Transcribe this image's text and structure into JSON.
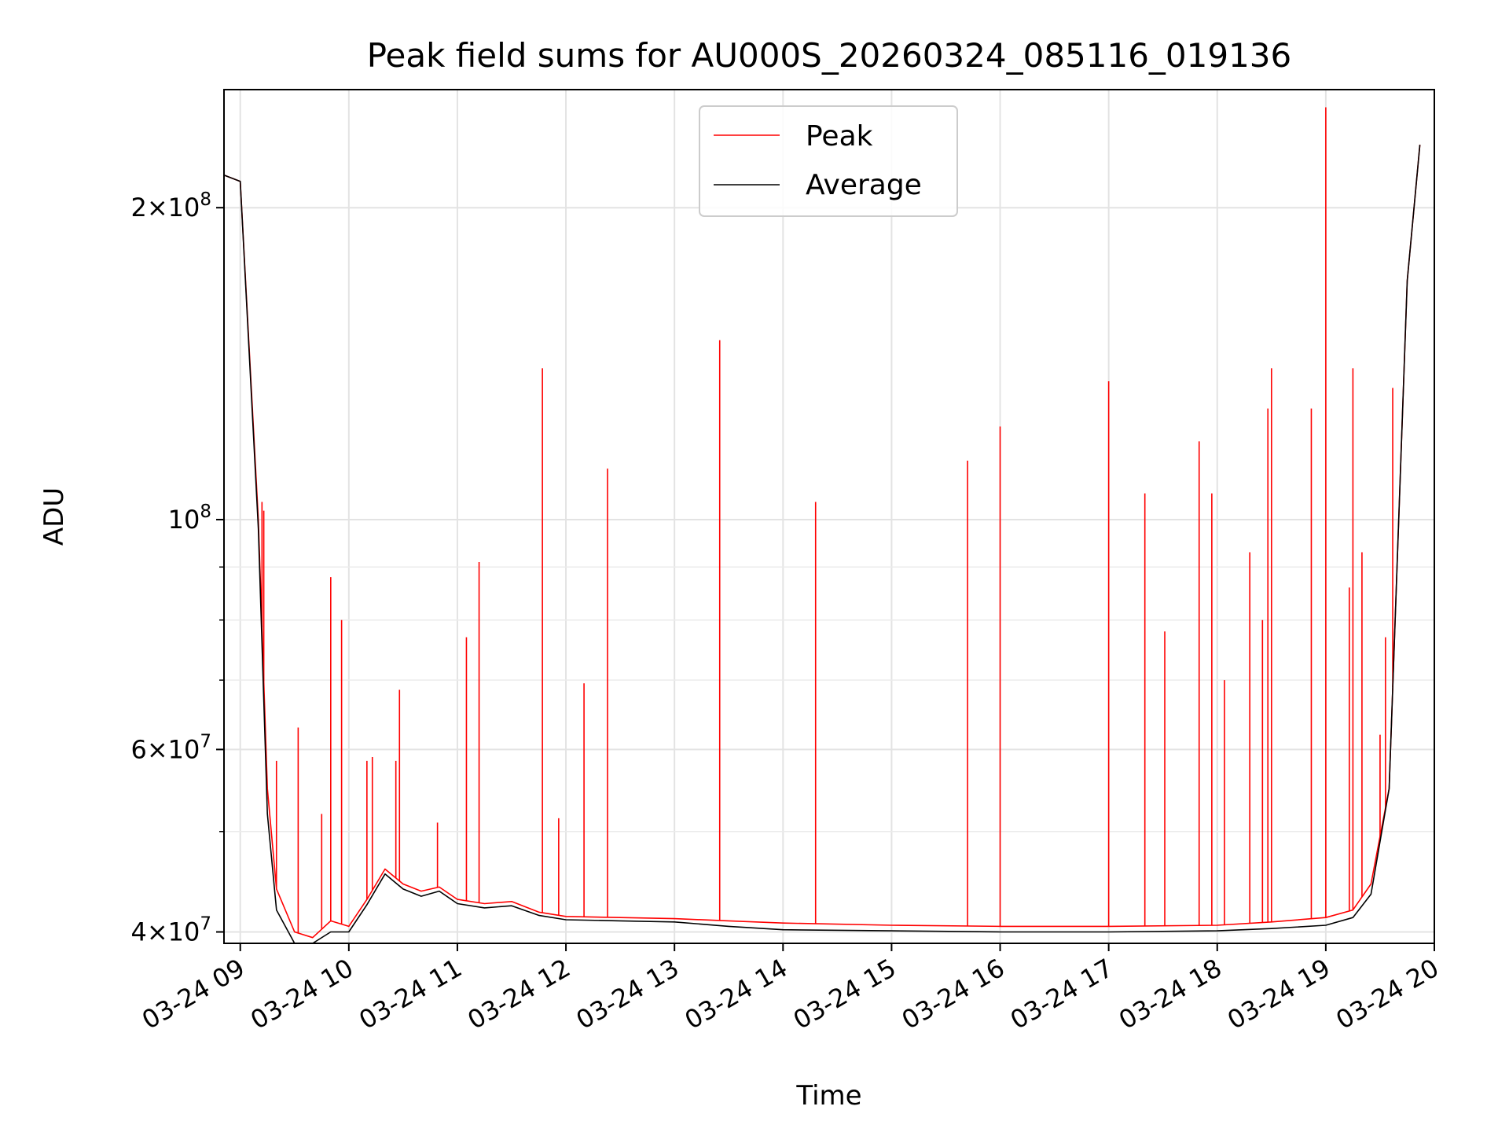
{
  "chart_data": {
    "type": "line",
    "title": "Peak field sums for AU000S_20260324_085116_019136",
    "xlabel": "Time",
    "ylabel": "ADU",
    "yscale": "log",
    "xlim": [
      "03-24 08:51",
      "03-24 20:00"
    ],
    "ylim": [
      39000000,
      260000000
    ],
    "grid": true,
    "legend_position": "top-center",
    "x_tick_labels": [
      "03-24 09",
      "03-24 10",
      "03-24 11",
      "03-24 12",
      "03-24 13",
      "03-24 14",
      "03-24 15",
      "03-24 16",
      "03-24 17",
      "03-24 18",
      "03-24 19",
      "03-24 20"
    ],
    "y_major_ticks": [
      {
        "value": 40000000,
        "mantissa": "4",
        "exp": "7"
      },
      {
        "value": 60000000,
        "mantissa": "6",
        "exp": "7"
      },
      {
        "value": 100000000,
        "mantissa": "",
        "exp": "8"
      },
      {
        "value": 200000000,
        "mantissa": "2",
        "exp": "8"
      }
    ],
    "y_minor_ticks": [
      50000000,
      70000000,
      80000000,
      90000000
    ],
    "series": [
      {
        "name": "Peak",
        "color": "#ff0000",
        "x": [
          "03-24 08:51",
          "03-24 09:00",
          "03-24 09:10",
          "03-24 09:15",
          "03-24 09:20",
          "03-24 09:30",
          "03-24 09:40",
          "03-24 09:50",
          "03-24 10:00",
          "03-24 10:10",
          "03-24 10:20",
          "03-24 10:30",
          "03-24 10:40",
          "03-24 10:50",
          "03-24 11:00",
          "03-24 11:15",
          "03-24 11:30",
          "03-24 11:45",
          "03-24 12:00",
          "03-24 12:30",
          "03-24 13:00",
          "03-24 13:30",
          "03-24 14:00",
          "03-24 15:00",
          "03-24 16:00",
          "03-24 17:00",
          "03-24 18:00",
          "03-24 18:30",
          "03-24 19:00",
          "03-24 19:15",
          "03-24 19:25",
          "03-24 19:35",
          "03-24 19:45",
          "03-24 19:52"
        ],
        "y": [
          215000000,
          212000000,
          100000000,
          55000000,
          44000000,
          40000000,
          39500000,
          41000000,
          40500000,
          43000000,
          46000000,
          44500000,
          43800000,
          44200000,
          43000000,
          42600000,
          42800000,
          41800000,
          41400000,
          41300000,
          41200000,
          41000000,
          40800000,
          40600000,
          40500000,
          40500000,
          40600000,
          40900000,
          41300000,
          42000000,
          44500000,
          55000000,
          170000000,
          230000000
        ],
        "spikes": [
          {
            "x": "03-24 09:12",
            "y": 104000000
          },
          {
            "x": "03-24 09:13",
            "y": 102000000
          },
          {
            "x": "03-24 09:20",
            "y": 58500000
          },
          {
            "x": "03-24 09:32",
            "y": 63000000
          },
          {
            "x": "03-24 09:45",
            "y": 52000000
          },
          {
            "x": "03-24 09:50",
            "y": 88000000
          },
          {
            "x": "03-24 09:56",
            "y": 80000000
          },
          {
            "x": "03-24 10:10",
            "y": 58500000
          },
          {
            "x": "03-24 10:13",
            "y": 59000000
          },
          {
            "x": "03-24 10:26",
            "y": 58500000
          },
          {
            "x": "03-24 10:28",
            "y": 68500000
          },
          {
            "x": "03-24 10:49",
            "y": 51000000
          },
          {
            "x": "03-24 11:05",
            "y": 77000000
          },
          {
            "x": "03-24 11:12",
            "y": 91000000
          },
          {
            "x": "03-24 11:47",
            "y": 140000000
          },
          {
            "x": "03-24 11:56",
            "y": 51500000
          },
          {
            "x": "03-24 12:10",
            "y": 69500000
          },
          {
            "x": "03-24 12:23",
            "y": 112000000
          },
          {
            "x": "03-24 13:25",
            "y": 149000000
          },
          {
            "x": "03-24 14:18",
            "y": 104000000
          },
          {
            "x": "03-24 15:42",
            "y": 114000000
          },
          {
            "x": "03-24 16:00",
            "y": 123000000
          },
          {
            "x": "03-24 17:00",
            "y": 136000000
          },
          {
            "x": "03-24 17:20",
            "y": 106000000
          },
          {
            "x": "03-24 17:31",
            "y": 78000000
          },
          {
            "x": "03-24 17:50",
            "y": 119000000
          },
          {
            "x": "03-24 17:57",
            "y": 106000000
          },
          {
            "x": "03-24 18:04",
            "y": 70000000
          },
          {
            "x": "03-24 18:18",
            "y": 93000000
          },
          {
            "x": "03-24 18:25",
            "y": 80000000
          },
          {
            "x": "03-24 18:28",
            "y": 128000000
          },
          {
            "x": "03-24 18:30",
            "y": 140000000
          },
          {
            "x": "03-24 18:52",
            "y": 128000000
          },
          {
            "x": "03-24 19:00",
            "y": 250000000
          },
          {
            "x": "03-24 19:13",
            "y": 86000000
          },
          {
            "x": "03-24 19:15",
            "y": 140000000
          },
          {
            "x": "03-24 19:20",
            "y": 93000000
          },
          {
            "x": "03-24 19:30",
            "y": 62000000
          },
          {
            "x": "03-24 19:33",
            "y": 77000000
          },
          {
            "x": "03-24 19:37",
            "y": 134000000
          }
        ]
      },
      {
        "name": "Average",
        "color": "#000000",
        "x": [
          "03-24 08:51",
          "03-24 09:00",
          "03-24 09:10",
          "03-24 09:15",
          "03-24 09:20",
          "03-24 09:30",
          "03-24 09:40",
          "03-24 09:50",
          "03-24 10:00",
          "03-24 10:10",
          "03-24 10:20",
          "03-24 10:30",
          "03-24 10:40",
          "03-24 10:50",
          "03-24 11:00",
          "03-24 11:15",
          "03-24 11:30",
          "03-24 11:45",
          "03-24 12:00",
          "03-24 12:30",
          "03-24 13:00",
          "03-24 13:30",
          "03-24 14:00",
          "03-24 15:00",
          "03-24 16:00",
          "03-24 17:00",
          "03-24 18:00",
          "03-24 18:30",
          "03-24 19:00",
          "03-24 19:15",
          "03-24 19:25",
          "03-24 19:35",
          "03-24 19:45",
          "03-24 19:52"
        ],
        "y": [
          215000000,
          212000000,
          98000000,
          52000000,
          42000000,
          39000000,
          39000000,
          40000000,
          40000000,
          42500000,
          45500000,
          44000000,
          43300000,
          43800000,
          42600000,
          42200000,
          42400000,
          41500000,
          41100000,
          41000000,
          40900000,
          40500000,
          40200000,
          40100000,
          40000000,
          40000000,
          40100000,
          40300000,
          40600000,
          41300000,
          43500000,
          55000000,
          170000000,
          230000000
        ]
      }
    ]
  }
}
